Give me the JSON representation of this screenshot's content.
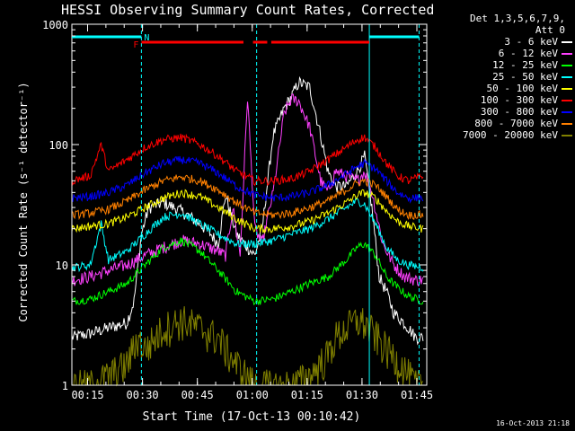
{
  "title": "HESSI Observing Summary Count Rates, Corrected",
  "timestamp": "16-Oct-2013 21:18",
  "legend": {
    "header_line1": "Det 1,3,5,6,7,9,",
    "header_line2": "Att 0"
  },
  "chart_data": {
    "type": "line",
    "xlabel": "Start Time (17-Oct-13 00:10:42)",
    "ylabel": "Corrected Count Rate (s⁻¹ detector⁻¹)",
    "x_unit": "minutes after 00:10:42 (UT)",
    "xlim": [
      0,
      97
    ],
    "ylim": [
      1,
      1000
    ],
    "yscale": "log",
    "x_ticks": [
      {
        "t": 4.3,
        "label": "00:15"
      },
      {
        "t": 19.3,
        "label": "00:30"
      },
      {
        "t": 34.3,
        "label": "00:45"
      },
      {
        "t": 49.3,
        "label": "01:00"
      },
      {
        "t": 64.3,
        "label": "01:15"
      },
      {
        "t": 79.3,
        "label": "01:30"
      },
      {
        "t": 94.3,
        "label": "01:45"
      }
    ],
    "y_ticks": [
      {
        "v": 1,
        "label": "1"
      },
      {
        "v": 10,
        "label": "10"
      },
      {
        "v": 100,
        "label": "100"
      },
      {
        "v": 1000,
        "label": "1000"
      }
    ],
    "legend_placement": "right",
    "series": [
      {
        "name": "3 - 6 keV",
        "color": "#ffffff",
        "x": [
          0,
          5,
          10,
          15,
          17,
          19,
          21,
          25,
          30,
          35,
          38,
          40,
          42,
          45,
          48,
          50,
          52,
          55,
          58,
          60,
          62,
          65,
          68,
          70,
          72,
          75,
          78,
          80,
          82,
          84,
          86,
          88,
          90,
          92,
          94,
          96
        ],
        "y": [
          2.5,
          2.7,
          3,
          3.3,
          5,
          18,
          30,
          33,
          28,
          22,
          18,
          15,
          38,
          18,
          14,
          12,
          20,
          120,
          200,
          250,
          330,
          300,
          120,
          60,
          45,
          45,
          60,
          80,
          30,
          8,
          6,
          4,
          3.5,
          3,
          2.5,
          2.5
        ]
      },
      {
        "name": "6 - 12 keV",
        "color": "#ff40ff",
        "x": [
          0,
          5,
          10,
          15,
          20,
          25,
          30,
          35,
          40,
          42,
          44,
          46,
          48,
          50,
          52,
          55,
          58,
          60,
          62,
          65,
          68,
          70,
          72,
          75,
          78,
          80,
          82,
          85,
          88,
          91,
          94,
          96
        ],
        "y": [
          7.5,
          8,
          9,
          10,
          12,
          14,
          16,
          15,
          13,
          12,
          30,
          12,
          250,
          20,
          15,
          40,
          180,
          240,
          230,
          140,
          50,
          40,
          60,
          55,
          50,
          60,
          40,
          15,
          10,
          8,
          7.5,
          7.5
        ]
      },
      {
        "name": "12 - 25 keV",
        "color": "#00ff00",
        "x": [
          0,
          5,
          10,
          15,
          20,
          25,
          30,
          35,
          40,
          45,
          50,
          55,
          60,
          65,
          70,
          75,
          78,
          80,
          83,
          86,
          89,
          92,
          96
        ],
        "y": [
          5,
          5.2,
          6,
          7,
          10,
          14,
          16,
          13,
          9,
          6,
          5,
          5.2,
          6,
          7,
          8,
          11,
          14,
          15,
          12,
          8,
          6.5,
          5.5,
          5
        ]
      },
      {
        "name": "25 - 50 keV",
        "color": "#00ffff",
        "x": [
          0,
          5,
          8,
          10,
          15,
          20,
          25,
          30,
          35,
          40,
          45,
          50,
          55,
          60,
          65,
          70,
          75,
          78,
          80,
          83,
          86,
          89,
          92,
          96
        ],
        "y": [
          9.5,
          10,
          22,
          11,
          13,
          18,
          25,
          27,
          22,
          18,
          15,
          15,
          16,
          18,
          20,
          24,
          30,
          34,
          32,
          22,
          14,
          11,
          10,
          9.5
        ]
      },
      {
        "name": "50 - 100 keV",
        "color": "#ffff00",
        "x": [
          0,
          5,
          10,
          15,
          20,
          25,
          30,
          35,
          40,
          45,
          50,
          55,
          60,
          65,
          70,
          75,
          78,
          80,
          83,
          86,
          89,
          92,
          96
        ],
        "y": [
          20,
          21,
          22,
          25,
          30,
          36,
          40,
          37,
          30,
          24,
          20,
          20,
          21,
          23,
          27,
          33,
          38,
          40,
          36,
          28,
          23,
          21,
          20
        ]
      },
      {
        "name": "100 - 300 keV",
        "color": "#ff0000",
        "x": [
          0,
          5,
          8,
          10,
          15,
          20,
          25,
          30,
          35,
          40,
          45,
          50,
          55,
          60,
          65,
          70,
          75,
          78,
          80,
          83,
          86,
          89,
          92,
          96
        ],
        "y": [
          50,
          55,
          100,
          60,
          75,
          95,
          110,
          115,
          100,
          80,
          60,
          50,
          50,
          52,
          60,
          75,
          95,
          110,
          115,
          95,
          70,
          55,
          50,
          55
        ]
      },
      {
        "name": "300 - 800 keV",
        "color": "#0000ff",
        "x": [
          0,
          5,
          10,
          15,
          20,
          25,
          30,
          35,
          40,
          45,
          50,
          55,
          60,
          65,
          70,
          75,
          78,
          80,
          83,
          86,
          89,
          92,
          96
        ],
        "y": [
          36,
          37,
          40,
          46,
          58,
          70,
          75,
          70,
          58,
          45,
          38,
          36,
          37,
          40,
          46,
          57,
          66,
          70,
          63,
          50,
          40,
          36,
          36
        ]
      },
      {
        "name": "800 - 7000 keV",
        "color": "#ff8000",
        "x": [
          0,
          5,
          10,
          15,
          20,
          25,
          30,
          35,
          40,
          45,
          50,
          55,
          60,
          65,
          70,
          75,
          78,
          80,
          83,
          86,
          89,
          92,
          96
        ],
        "y": [
          26,
          27,
          29,
          34,
          42,
          50,
          54,
          50,
          42,
          33,
          27,
          26,
          27,
          30,
          34,
          42,
          48,
          50,
          46,
          37,
          29,
          26,
          26
        ]
      },
      {
        "name": "7000 - 20000 keV",
        "color": "#808000",
        "x": [
          0,
          5,
          10,
          15,
          18,
          20,
          25,
          30,
          32,
          35,
          40,
          45,
          50,
          55,
          60,
          65,
          70,
          72,
          75,
          78,
          80,
          83,
          86,
          90,
          94,
          96
        ],
        "y": [
          1,
          1,
          1.2,
          1.5,
          2.5,
          2,
          3,
          3.5,
          3.3,
          3,
          2.5,
          1.5,
          1,
          1,
          1,
          1.2,
          1.8,
          2.5,
          3,
          3.5,
          3.3,
          2.6,
          2,
          1.5,
          1,
          1
        ]
      }
    ],
    "vertical_lines": [
      {
        "t": 19.0,
        "style": "dashed",
        "color": "#00ffff"
      },
      {
        "t": 50.5,
        "style": "dashed",
        "color": "#00ffff"
      },
      {
        "t": 81.3,
        "style": "solid",
        "color": "#00ffff"
      },
      {
        "t": 94.9,
        "style": "dashed",
        "color": "#00ffff"
      }
    ],
    "status_bars": [
      {
        "name": "night",
        "color": "#00ffff",
        "label": "N",
        "segments": [
          [
            0,
            19.0
          ],
          [
            81.3,
            94.9
          ]
        ]
      },
      {
        "name": "flare",
        "color": "#ff0000",
        "label": "F",
        "segments": [
          [
            19.0,
            46.9
          ],
          [
            49.5,
            53.4
          ],
          [
            54.5,
            81.3
          ]
        ]
      }
    ]
  }
}
